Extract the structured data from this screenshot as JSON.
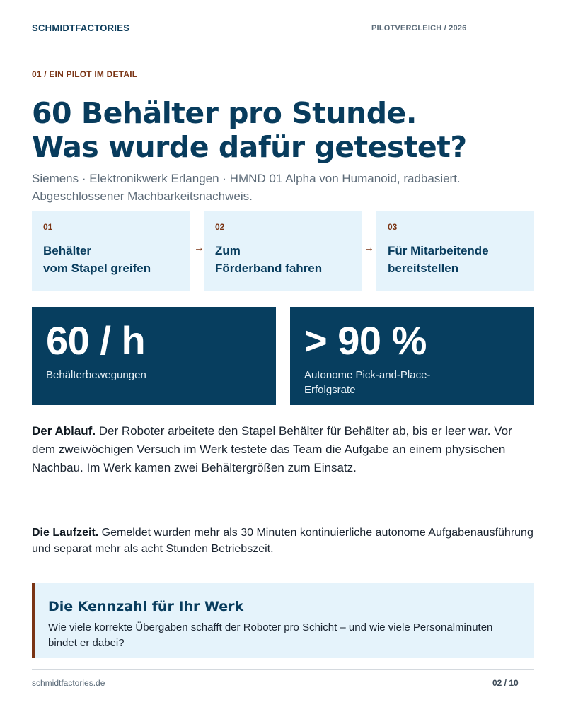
{
  "header": {
    "brand": "SCHMIDTFACTORIES",
    "doc_tag": "PILOTVERGLEICH / 2026"
  },
  "eyebrow": "01 / EIN PILOT IM DETAIL",
  "title": {
    "line1": "60 Behälter pro Stunde.",
    "line2": "Was wurde dafür getestet?"
  },
  "subtitle": {
    "line1": "Siemens · Elektronikwerk Erlangen · HMND 01 Alpha von Humanoid, radbasiert.",
    "line2": "Abgeschlossener Machbarkeitsnachweis."
  },
  "steps": [
    {
      "num": "01",
      "line1": "Behälter",
      "line2": "vom Stapel greifen"
    },
    {
      "num": "02",
      "line1": "Zum",
      "line2": "Förderband fahren"
    },
    {
      "num": "03",
      "line1": "Für Mitarbeitende",
      "line2": "bereitstellen"
    }
  ],
  "arrow_glyph": "→",
  "stats": [
    {
      "value": "60 / h",
      "label_line1": "Behälterbewegungen",
      "label_line2": ""
    },
    {
      "value": "> 90 %",
      "label_line1": "Autonome Pick-and-Place-",
      "label_line2": "Erfolgsrate"
    }
  ],
  "paragraphs": [
    {
      "lead": "Der Ablauf.",
      "text": " Der Roboter arbeitete den Stapel Behälter für Behälter ab, bis er leer war. Vor dem zweiwöchigen Versuch im Werk testete das Team die Aufgabe an einem physischen Nachbau. Im Werk kamen zwei Behältergrößen zum Einsatz."
    },
    {
      "lead": "Die Laufzeit.",
      "text": " Gemeldet wurden mehr als 30 Minuten kontinuierliche autonome Aufgabenausführung und separat mehr als acht Stunden Betriebszeit."
    }
  ],
  "callout": {
    "title": "Die Kennzahl für Ihr Werk",
    "text": "Wie viele korrekte Übergaben schafft der Roboter pro Schicht – und wie viele Personalminuten bindet er dabei?"
  },
  "footer": {
    "url": "schmidtfactories.de",
    "page": "02 / 10"
  },
  "colors": {
    "navy": "#073e5f",
    "accent_brown": "#7a3414",
    "light_blue_panel": "#e5f3fb"
  },
  "icons": {
    "arrow": "arrow-right-icon"
  }
}
